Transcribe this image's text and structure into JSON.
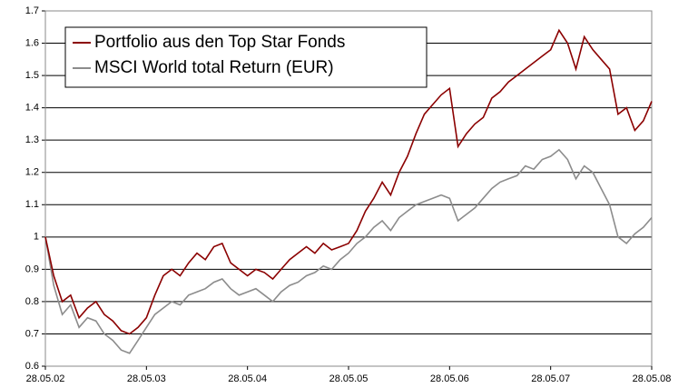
{
  "chart_data": {
    "type": "line",
    "x": [
      2002.4,
      2002.483,
      2002.567,
      2002.65,
      2002.733,
      2002.817,
      2002.9,
      2002.983,
      2003.067,
      2003.15,
      2003.233,
      2003.317,
      2003.4,
      2003.483,
      2003.567,
      2003.65,
      2003.733,
      2003.817,
      2003.9,
      2003.983,
      2004.067,
      2004.15,
      2004.233,
      2004.317,
      2004.4,
      2004.483,
      2004.567,
      2004.65,
      2004.733,
      2004.817,
      2004.9,
      2004.983,
      2005.067,
      2005.15,
      2005.233,
      2005.317,
      2005.4,
      2005.483,
      2005.567,
      2005.65,
      2005.733,
      2005.817,
      2005.9,
      2005.983,
      2006.067,
      2006.15,
      2006.233,
      2006.317,
      2006.4,
      2006.483,
      2006.567,
      2006.65,
      2006.733,
      2006.817,
      2006.9,
      2006.983,
      2007.067,
      2007.15,
      2007.233,
      2007.317,
      2007.4,
      2007.483,
      2007.567,
      2007.65,
      2007.733,
      2007.817,
      2007.9,
      2007.983,
      2008.067,
      2008.15,
      2008.233,
      2008.317,
      2008.4
    ],
    "series": [
      {
        "name": "Portfolio aus den Top Star Fonds",
        "color": "#8b0000",
        "values": [
          1.0,
          0.88,
          0.8,
          0.82,
          0.75,
          0.78,
          0.8,
          0.76,
          0.74,
          0.71,
          0.7,
          0.72,
          0.75,
          0.82,
          0.88,
          0.9,
          0.88,
          0.92,
          0.95,
          0.93,
          0.97,
          0.98,
          0.92,
          0.9,
          0.88,
          0.9,
          0.89,
          0.87,
          0.9,
          0.93,
          0.95,
          0.97,
          0.95,
          0.98,
          0.96,
          0.97,
          0.98,
          1.02,
          1.08,
          1.12,
          1.17,
          1.13,
          1.2,
          1.25,
          1.32,
          1.38,
          1.41,
          1.44,
          1.46,
          1.28,
          1.32,
          1.35,
          1.37,
          1.43,
          1.45,
          1.48,
          1.5,
          1.52,
          1.54,
          1.56,
          1.58,
          1.64,
          1.6,
          1.52,
          1.62,
          1.58,
          1.55,
          1.52,
          1.38,
          1.4,
          1.33,
          1.36,
          1.42
        ]
      },
      {
        "name": "MSCI World total Return (EUR)",
        "color": "#8c8c8c",
        "values": [
          1.0,
          0.85,
          0.76,
          0.79,
          0.72,
          0.75,
          0.74,
          0.7,
          0.68,
          0.65,
          0.64,
          0.68,
          0.72,
          0.76,
          0.78,
          0.8,
          0.79,
          0.82,
          0.83,
          0.84,
          0.86,
          0.87,
          0.84,
          0.82,
          0.83,
          0.84,
          0.82,
          0.8,
          0.83,
          0.85,
          0.86,
          0.88,
          0.89,
          0.91,
          0.9,
          0.93,
          0.95,
          0.98,
          1.0,
          1.03,
          1.05,
          1.02,
          1.06,
          1.08,
          1.1,
          1.11,
          1.12,
          1.13,
          1.12,
          1.05,
          1.07,
          1.09,
          1.12,
          1.15,
          1.17,
          1.18,
          1.19,
          1.22,
          1.21,
          1.24,
          1.25,
          1.27,
          1.24,
          1.18,
          1.22,
          1.2,
          1.15,
          1.1,
          1.0,
          0.98,
          1.01,
          1.03,
          1.06
        ]
      }
    ],
    "xlim": [
      2002.4,
      2008.4
    ],
    "xticks": [
      {
        "value": 2002.4,
        "label": "28.05.02"
      },
      {
        "value": 2003.4,
        "label": "28.05.03"
      },
      {
        "value": 2004.4,
        "label": "28.05.04"
      },
      {
        "value": 2005.4,
        "label": "28.05.05"
      },
      {
        "value": 2006.4,
        "label": "28.05.06"
      },
      {
        "value": 2007.4,
        "label": "28.05.07"
      },
      {
        "value": 2008.4,
        "label": "28.05.08"
      }
    ],
    "ylim": [
      0.6,
      1.7
    ],
    "yticks": [
      0.6,
      0.7,
      0.8,
      0.9,
      1,
      1.1,
      1.2,
      1.3,
      1.4,
      1.5,
      1.6,
      1.7
    ],
    "grid": true,
    "legend": "upper-left"
  }
}
